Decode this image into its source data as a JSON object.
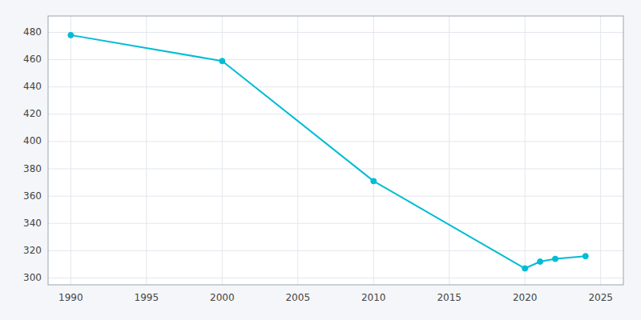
{
  "chart_data": {
    "type": "line",
    "x": [
      1990,
      2000,
      2010,
      2020,
      2021,
      2022,
      2024
    ],
    "values": [
      478,
      459,
      371,
      307,
      312,
      314,
      316
    ],
    "color": "#00BCD4",
    "marker": "circle",
    "xlim": [
      1988.5,
      2026.5
    ],
    "ylim": [
      295,
      492
    ],
    "xticks": [
      1990,
      1995,
      2000,
      2005,
      2010,
      2015,
      2020,
      2025
    ],
    "yticks": [
      300,
      320,
      340,
      360,
      380,
      400,
      420,
      440,
      460,
      480
    ],
    "grid": true
  }
}
